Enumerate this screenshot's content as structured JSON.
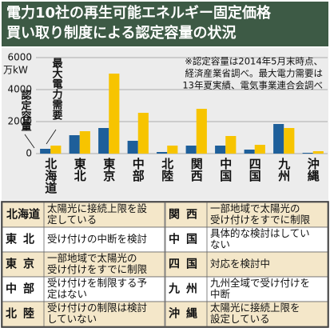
{
  "chart_data": {
    "type": "bar",
    "title": [
      "電力10社の再生可能エネルギー固定価格",
      "買い取り制度による認定容量の状況"
    ],
    "note": [
      "※認定容量は2014年5月末時点、",
      "経済産業省調べ。最大電力需要は",
      "13年夏実績、電気事業連合会調べ"
    ],
    "y_unit": "万kW",
    "categories": [
      "北海道",
      "東北",
      "東京",
      "中部",
      "北陸",
      "関西",
      "中国",
      "四国",
      "九州",
      "沖縄"
    ],
    "series": [
      {
        "name": "認定容量",
        "color": "#1e5f9a",
        "values": [
          300,
          1150,
          1600,
          800,
          100,
          500,
          500,
          250,
          1850,
          50
        ]
      },
      {
        "name": "最大電力需要",
        "color": "#f7c400",
        "values": [
          500,
          1400,
          5000,
          2550,
          500,
          2800,
          1100,
          550,
          1600,
          150
        ]
      }
    ],
    "ylim": [
      0,
      6000
    ],
    "yticks": [
      0,
      2000,
      4000,
      6000
    ],
    "grid": true
  },
  "table": {
    "left": [
      {
        "name": "北海道",
        "lines": [
          "太陽光に接続上限を設",
          "定している"
        ]
      },
      {
        "name": "東北",
        "lines": [
          "受け付けの中断を検討"
        ]
      },
      {
        "name": "東京",
        "lines": [
          "一部地域で太陽光の",
          "受け付けをすでに制限"
        ]
      },
      {
        "name": "中部",
        "lines": [
          "受け付けを制限する予",
          "定はない"
        ]
      },
      {
        "name": "北陸",
        "lines": [
          "受け付けの制限は検討",
          "していない"
        ]
      }
    ],
    "right": [
      {
        "name": "関西",
        "lines": [
          "一部地域で太陽光の",
          "受け付けをすでに制限"
        ]
      },
      {
        "name": "中国",
        "lines": [
          "具体的な検討はしてい",
          "ない"
        ]
      },
      {
        "name": "四国",
        "lines": [
          "対応を検討中"
        ]
      },
      {
        "name": "九州",
        "lines": [
          "九州全域で受け付けを",
          "中断"
        ]
      },
      {
        "name": "沖縄",
        "lines": [
          "太陽光に接続上限を",
          "設定している"
        ]
      }
    ]
  }
}
